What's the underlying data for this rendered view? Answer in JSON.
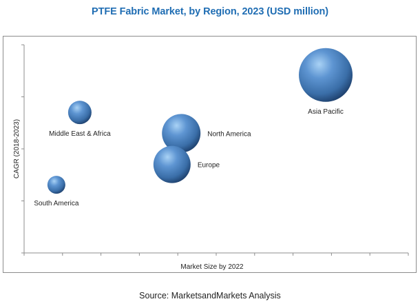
{
  "title": "PTFE Fabric Market, by Region, 2023 (USD million)",
  "source": "Source: MarketsandMarkets Analysis",
  "colors": {
    "title": "#1f6db3",
    "bubble_light": "#a9d2f5",
    "bubble_mid": "#4f86c6",
    "bubble_dark": "#1d3f6b",
    "axis": "#8c8c8c"
  },
  "chart_data": {
    "type": "scatter",
    "subtype": "bubble",
    "title": "PTFE Fabric Market, by Region, 2023 (USD million)",
    "xlabel": "Market Size by 2022",
    "ylabel": "CAGR (2018-2023)",
    "xlim": [
      0,
      10
    ],
    "ylim": [
      0,
      4
    ],
    "x_ticks_count": 11,
    "y_ticks_count": 5,
    "tick_labels_shown": false,
    "grid": false,
    "legend": "none (data labels on points)",
    "points": [
      {
        "label": "Asia Pacific",
        "x": 7.85,
        "y": 3.42,
        "size": 39,
        "label_position": "below"
      },
      {
        "label": "North America",
        "x": 4.09,
        "y": 2.3,
        "size": 28,
        "label_position": "right"
      },
      {
        "label": "Europe",
        "x": 3.85,
        "y": 1.7,
        "size": 27,
        "label_position": "right"
      },
      {
        "label": "Middle East & Africa",
        "x": 1.45,
        "y": 2.7,
        "size": 17,
        "label_position": "below"
      },
      {
        "label": "South America",
        "x": 0.84,
        "y": 1.31,
        "size": 13,
        "label_position": "below"
      }
    ]
  }
}
